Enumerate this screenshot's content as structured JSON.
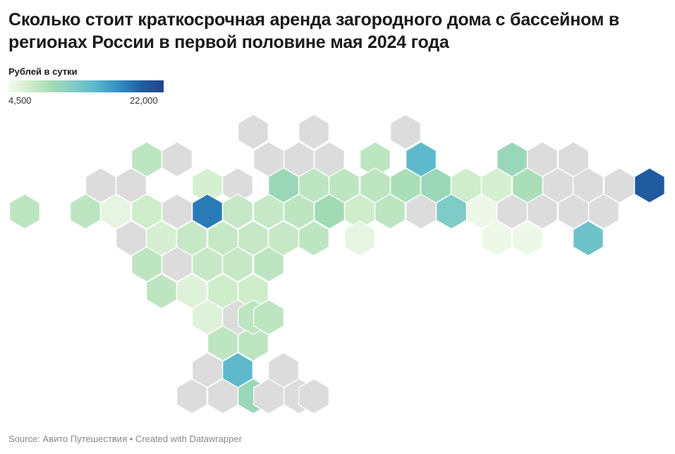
{
  "title": "Сколько стоит краткосрочная аренда загородного дома с бассейном в регионах России в первой половине мая 2024 года",
  "legend": {
    "label": "Рублей в сутки",
    "min_label": "4,500",
    "max_label": "22,000",
    "min": 4500,
    "max": 22000
  },
  "footer": {
    "source": "Source: Авито Путешествия",
    "separator": " • ",
    "credit": "Created with Datawrapper"
  },
  "colors": {
    "no_data": "#dcdcdc",
    "scale": [
      "#f4fbef",
      "#cfeccb",
      "#a1dab4",
      "#7ecbc7",
      "#57b5cd",
      "#2f8ec4",
      "#1f5fa4",
      "#23448a"
    ]
  },
  "hex_columns": [
    {
      "col": 0,
      "cells": [
        {
          "row": 6,
          "value": 8000
        }
      ]
    },
    {
      "col": 4,
      "cells": [
        {
          "row": 6,
          "value": 8000
        }
      ]
    },
    {
      "col": 5,
      "cells": [
        {
          "row": 5,
          "value": null
        }
      ]
    },
    {
      "col": 6,
      "cells": [
        {
          "row": 6,
          "value": 5500
        }
      ]
    },
    {
      "col": 7,
      "cells": [
        {
          "row": 5,
          "value": 11000
        }
      ]
    },
    {
      "col": 7,
      "cells": [
        {
          "row": 7,
          "value": null
        }
      ]
    },
    {
      "col": 8,
      "cells": [
        {
          "row": 3,
          "value": 8000
        }
      ]
    },
    {
      "col": 8,
      "cells": [
        {
          "row": 6,
          "value": 7000
        }
      ]
    },
    {
      "col": 8,
      "cells": [
        {
          "row": 8,
          "value": 6500
        }
      ]
    },
    {
      "col": 8,
      "cells": [
        {
          "row": 10,
          "value": 8000
        }
      ]
    },
    {
      "col": 9,
      "cells": [
        {
          "row": 3,
          "value": null
        }
      ]
    },
    {
      "col": 9,
      "cells": [
        {
          "row": 7,
          "value": 7500
        }
      ]
    },
    {
      "col": 9,
      "cells": [
        {
          "row": 9,
          "value": null
        }
      ]
    },
    {
      "col": 9,
      "cells": [
        {
          "row": 11,
          "value": 8000
        }
      ]
    },
    {
      "col": 10,
      "cells": [
        {
          "row": 6,
          "value": null
        }
      ]
    },
    {
      "col": 10,
      "cells": [
        {
          "row": 10,
          "value": 6000
        }
      ]
    },
    {
      "col": 11,
      "cells": [
        {
          "row": 7,
          "value": 8000
        }
      ]
    },
    {
      "col": 11,
      "cells": [
        {
          "row": 9,
          "value": 7500
        }
      ]
    },
    {
      "col": 11,
      "cells": [
        {
          "row": 11,
          "value": 6500
        }
      ]
    },
    {
      "col": 12,
      "cells": [
        {
          "row": 5,
          "value": 7000
        }
      ]
    },
    {
      "col": 12,
      "cells": [
        {
          "row": 8,
          "value": 7500
        }
      ]
    },
    {
      "col": 12,
      "cells": [
        {
          "row": 10,
          "value": 7500
        }
      ]
    },
    {
      "col": 12,
      "cells": [
        {
          "row": 12,
          "value": 6500
        }
      ]
    },
    {
      "col": 12,
      "cells": [
        {
          "row": 14,
          "value": 6000
        }
      ]
    },
    {
      "col": 13,
      "cells": [
        {
          "row": 6,
          "value": 18000
        }
      ]
    },
    {
      "col": 13,
      "cells": [
        {
          "row": 8,
          "value": 6500
        }
      ]
    },
    {
      "col": 13,
      "cells": [
        {
          "row": 10,
          "value": 9000
        }
      ]
    },
    {
      "col": 13,
      "cells": [
        {
          "row": 12,
          "value": 8000
        }
      ]
    },
    {
      "col": 13,
      "cells": [
        {
          "row": 15,
          "value": 8000
        }
      ]
    },
    {
      "col": 13,
      "cells": [
        {
          "row": 17,
          "value": 7500
        }
      ]
    },
    {
      "col": 14,
      "cells": [
        {
          "row": 5,
          "value": 6000
        }
      ]
    },
    {
      "col": 14,
      "cells": [
        {
          "row": 7,
          "value": 7500
        }
      ]
    },
    {
      "col": 14,
      "cells": [
        {
          "row": 9,
          "value": 7500
        }
      ]
    },
    {
      "col": 14,
      "cells": [
        {
          "row": 11,
          "value": 9000
        }
      ]
    },
    {
      "col": 14,
      "cells": [
        {
          "row": 13,
          "value": null
        }
      ]
    },
    {
      "col": 14,
      "cells": [
        {
          "row": 15,
          "value": 14000
        }
      ]
    },
    {
      "col": 14,
      "cells": [
        {
          "row": 17,
          "value": 9000
        }
      ]
    }
  ],
  "hex_cells": [
    {
      "id": "r01",
      "q": 0,
      "r": 6,
      "value": 8000
    },
    {
      "id": "r02",
      "q": 4,
      "r": 6,
      "value": 8000
    },
    {
      "id": "r03",
      "q": 5,
      "r": 5,
      "value": null
    },
    {
      "id": "r04",
      "q": 6,
      "r": 6,
      "value": 5500
    },
    {
      "id": "r05",
      "q": 7,
      "r": 5,
      "value": 11000
    },
    {
      "id": "r06",
      "q": 7,
      "r": 7,
      "value": null
    },
    {
      "id": "r07",
      "q": 8,
      "r": 4,
      "value": 8000
    },
    {
      "id": "r08",
      "q": 8,
      "r": 6,
      "value": 7000
    },
    {
      "id": "r09",
      "q": 8,
      "r": 8,
      "value": 6500
    },
    {
      "id": "r10",
      "q": 8,
      "r": 10,
      "value": 8000
    },
    {
      "id": "r11",
      "q": 9,
      "r": 4,
      "value": null
    },
    {
      "id": "r12",
      "q": 9,
      "r": 7,
      "value": 6500
    },
    {
      "id": "r13",
      "q": 9,
      "r": 9,
      "value": null
    },
    {
      "id": "r14",
      "q": 9,
      "r": 11,
      "value": 8000
    },
    {
      "id": "r15",
      "q": 10,
      "r": 6,
      "value": null
    },
    {
      "id": "r16",
      "q": 10,
      "r": 8,
      "value": 6500
    },
    {
      "id": "r17",
      "q": 10,
      "r": 10,
      "value": 6000
    },
    {
      "id": "r18",
      "q": 11,
      "r": 7,
      "value": 8000
    },
    {
      "id": "r19",
      "q": 11,
      "r": 9,
      "value": 7500
    },
    {
      "id": "r20",
      "q": 11,
      "r": 11,
      "value": 6500
    },
    {
      "id": "r21",
      "q": 12,
      "r": 5,
      "value": 6500
    },
    {
      "id": "r22",
      "q": 12,
      "r": 6,
      "value": 18000
    },
    {
      "id": "r23",
      "q": 12,
      "r": 8,
      "value": 7500
    },
    {
      "id": "r24",
      "q": 12,
      "r": 10,
      "value": 7500
    },
    {
      "id": "r25",
      "q": 12,
      "r": 12,
      "value": 6500
    },
    {
      "id": "r26",
      "q": 12,
      "r": 14,
      "value": 6000
    },
    {
      "id": "r27",
      "q": 13,
      "r": 6,
      "value": 7000
    },
    {
      "id": "r28",
      "q": 13,
      "r": 8,
      "value": 8000
    },
    {
      "id": "r29",
      "q": 13,
      "r": 10,
      "value": 9000
    },
    {
      "id": "r30",
      "q": 13,
      "r": 12,
      "value": null
    },
    {
      "id": "r31",
      "q": 13,
      "r": 14,
      "value": 8000
    },
    {
      "id": "r32",
      "q": 13,
      "r": 16,
      "value": 8000
    },
    {
      "id": "r33",
      "q": 14,
      "r": 5,
      "value": null
    },
    {
      "id": "r34",
      "q": 14,
      "r": 7,
      "value": 7500
    },
    {
      "id": "r35",
      "q": 14,
      "r": 9,
      "value": 7500
    },
    {
      "id": "r36",
      "q": 14,
      "r": 11,
      "value": 6500
    },
    {
      "id": "r37",
      "q": 14,
      "r": 13,
      "value": 8000
    },
    {
      "id": "r38",
      "q": 14,
      "r": 15,
      "value": 14000
    }
  ]
}
